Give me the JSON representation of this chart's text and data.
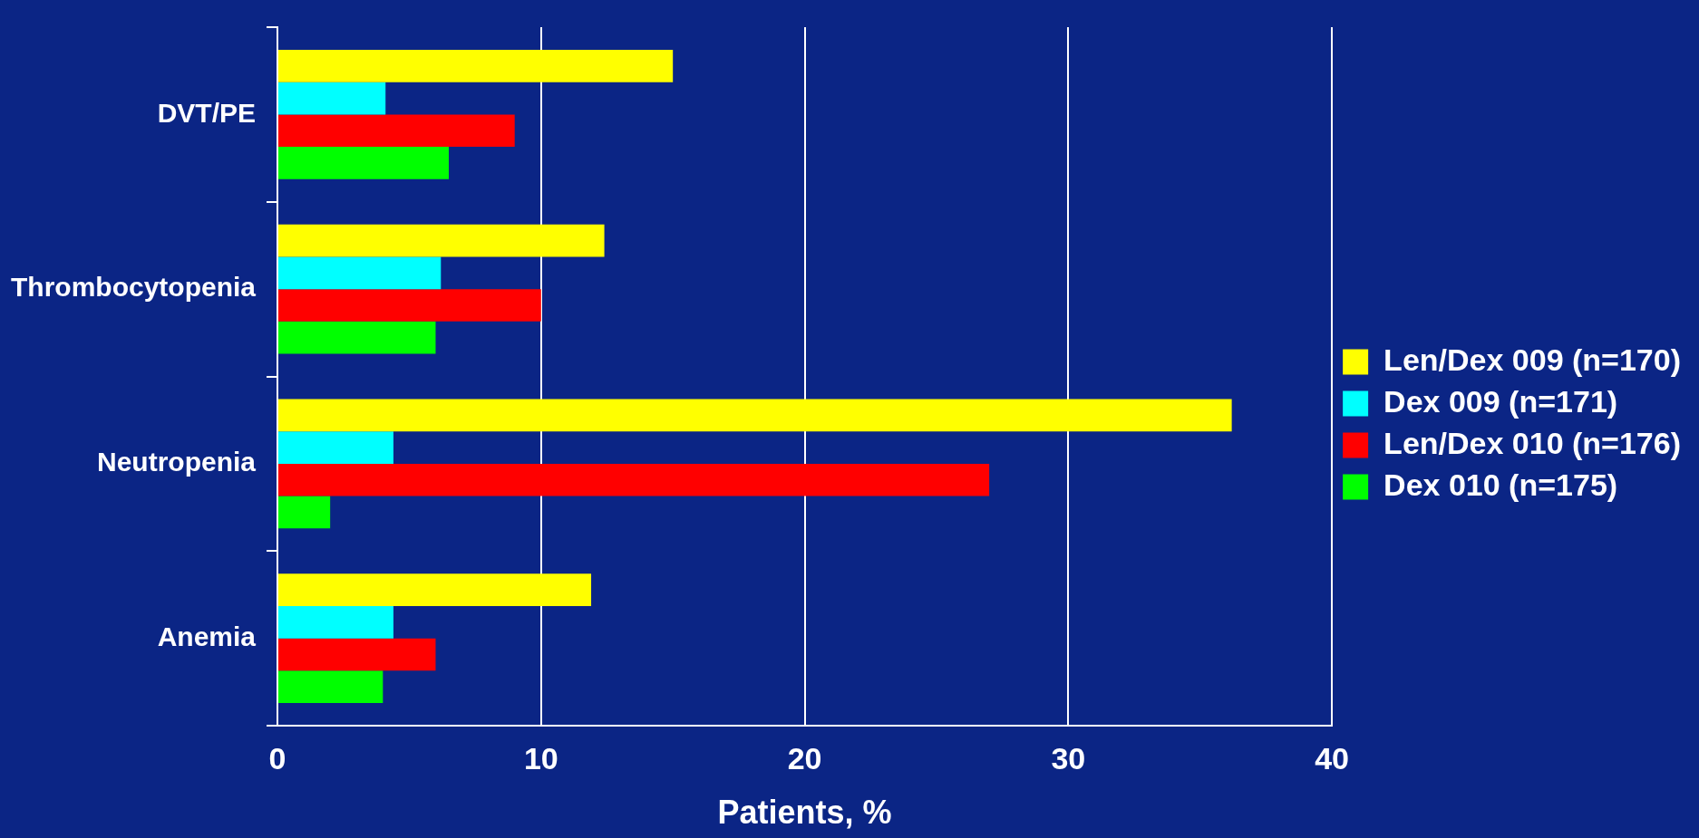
{
  "chart_data": {
    "type": "bar",
    "orientation": "horizontal",
    "xlabel": "Patients, %",
    "categories": [
      "DVT/PE",
      "Thrombocytopenia",
      "Neutropenia",
      "Anemia"
    ],
    "series": [
      {
        "name": "Len/Dex 009 (n=170)",
        "color": "#ffff00",
        "values": [
          15,
          12.4,
          36.2,
          11.9
        ]
      },
      {
        "name": "Dex 009 (n=171)",
        "color": "#00ffff",
        "values": [
          4.1,
          6.2,
          4.4,
          4.4
        ]
      },
      {
        "name": "Len/Dex 010 (n=176)",
        "color": "#ff0000",
        "values": [
          9,
          10,
          27,
          6
        ]
      },
      {
        "name": "Dex 010 (n=175)",
        "color": "#00ff00",
        "values": [
          6.5,
          6,
          2,
          4
        ]
      }
    ],
    "xlim": [
      0,
      40
    ],
    "xticks": [
      0,
      10,
      20,
      30,
      40
    ],
    "grid": "x",
    "legend": "right"
  }
}
